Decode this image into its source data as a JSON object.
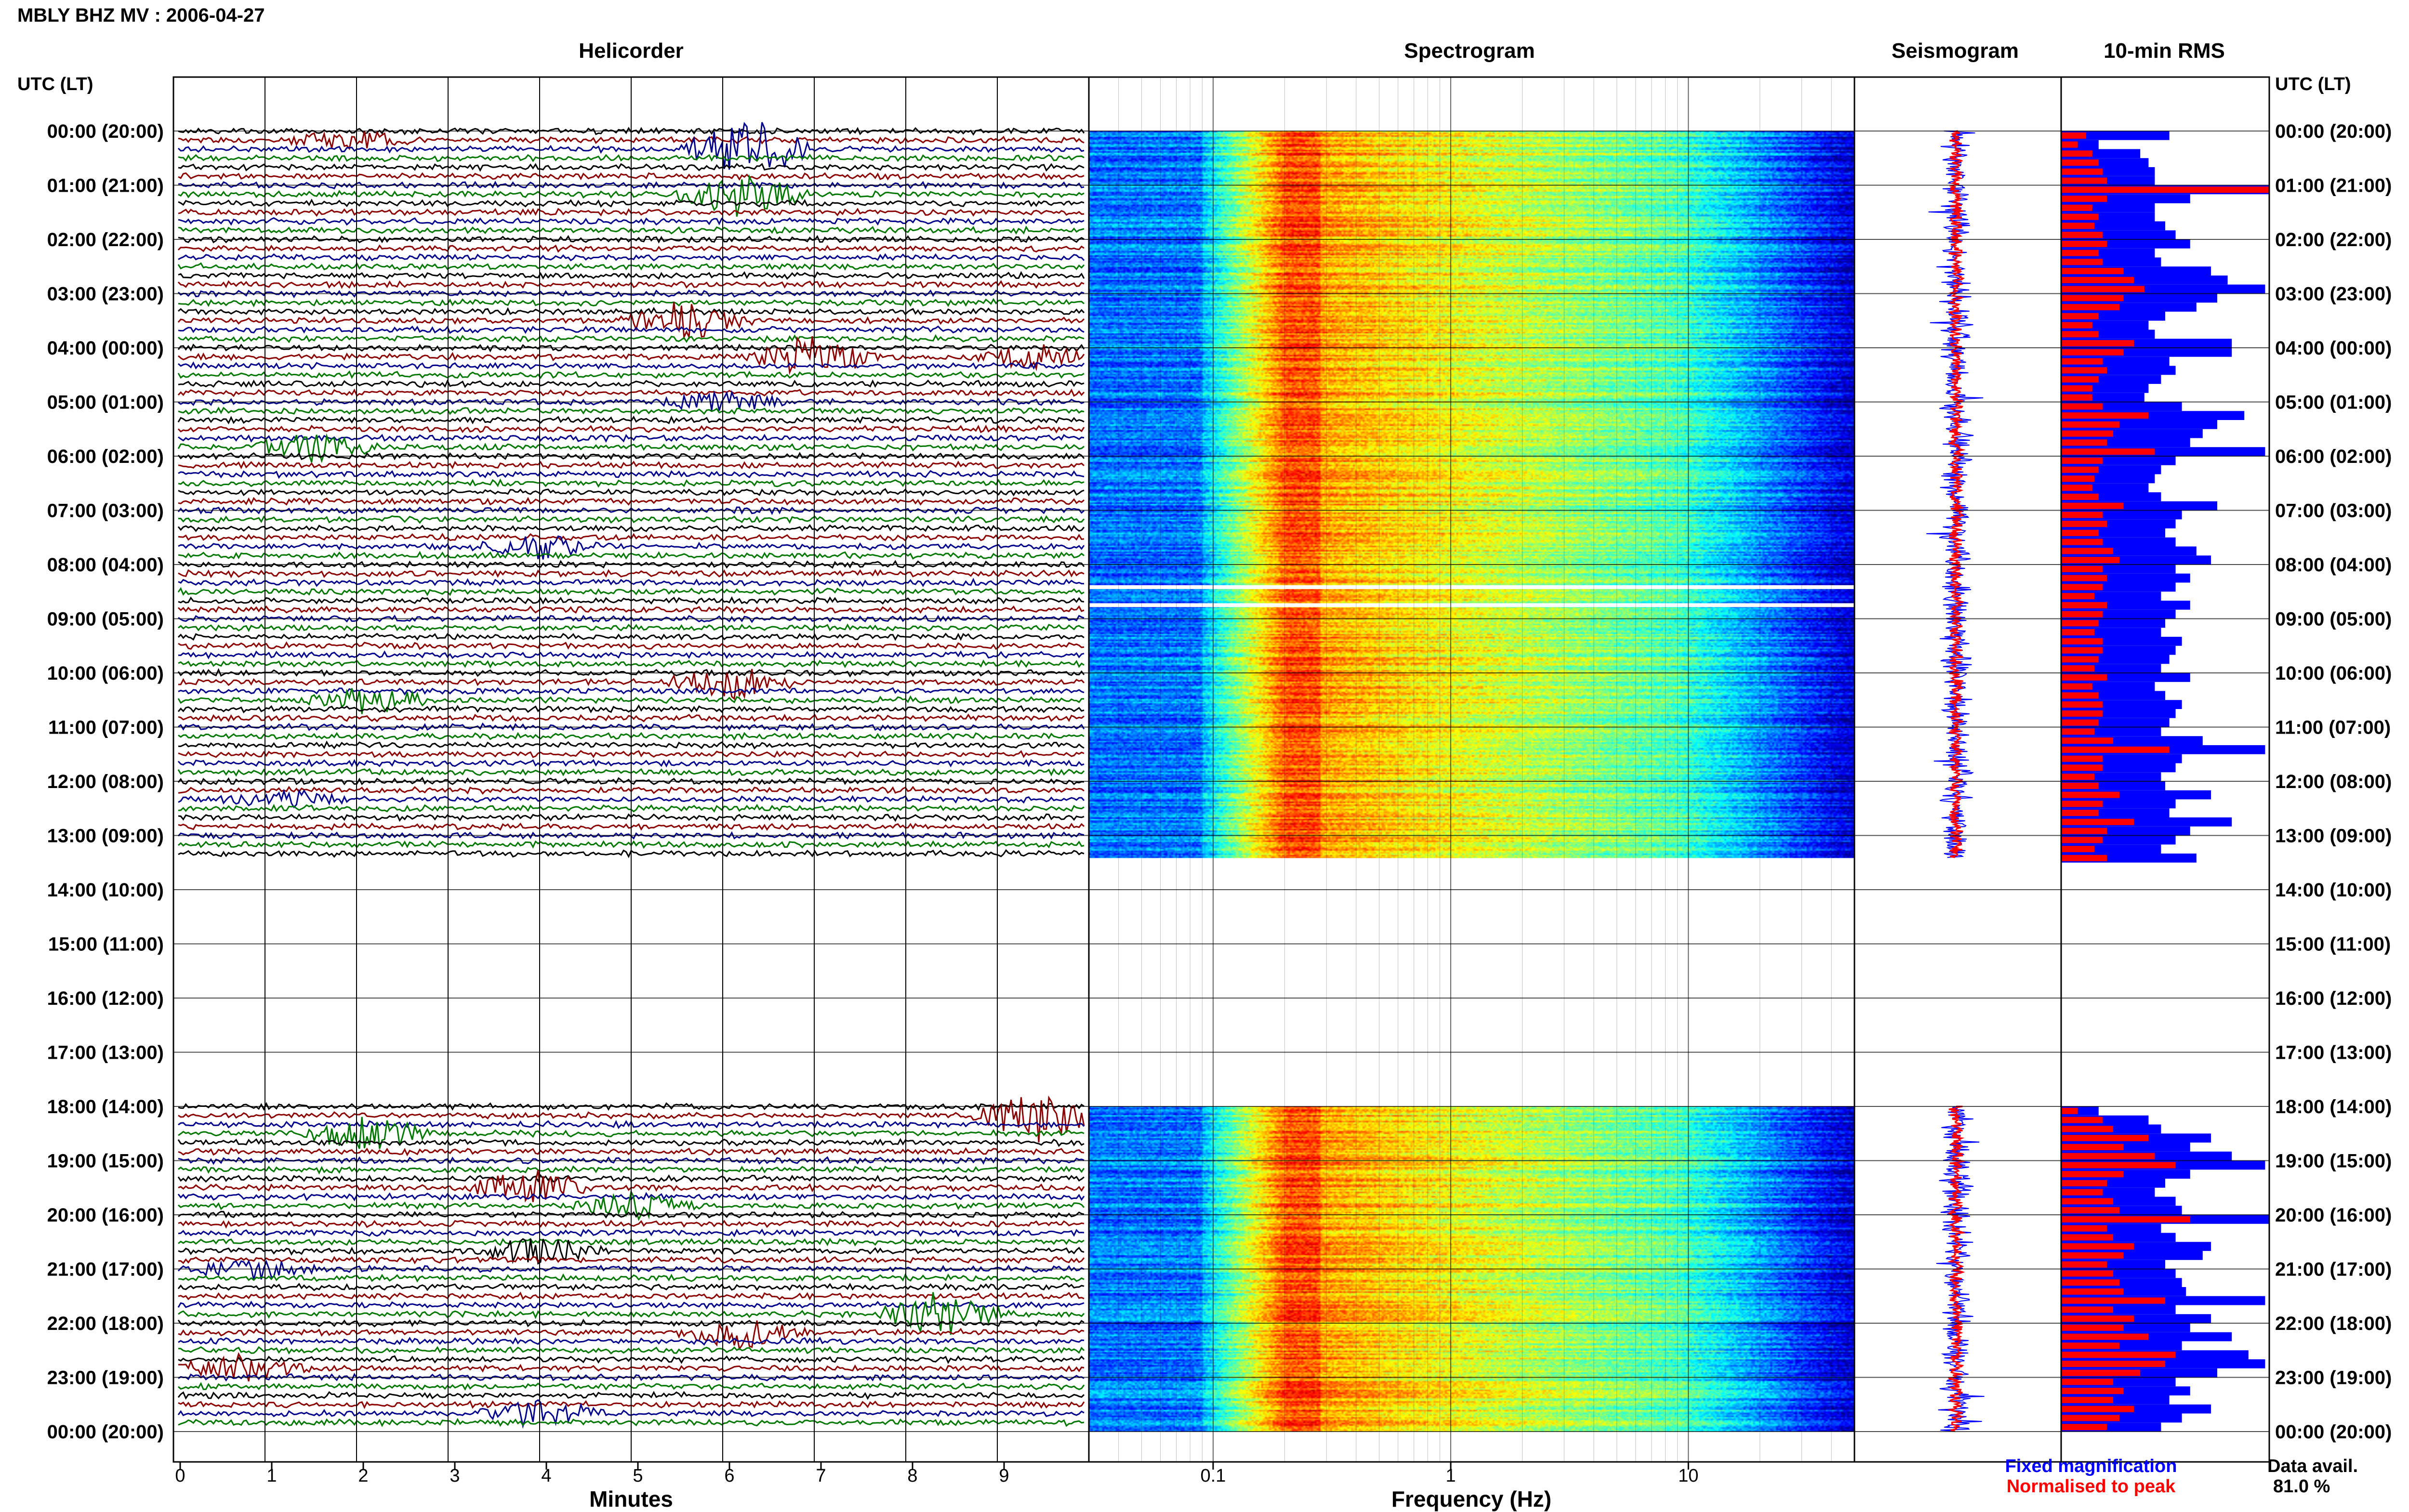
{
  "figure_title": "MBLY BHZ MV : 2006-04-27",
  "panels": {
    "helicorder": "Helicorder",
    "spectrogram": "Spectrogram",
    "seismogram": "Seismogram",
    "rms": "10-min RMS"
  },
  "time_axis_header": "UTC (LT)",
  "time_ticks": [
    "00:00 (20:00)",
    "01:00 (21:00)",
    "02:00 (22:00)",
    "03:00 (23:00)",
    "04:00 (00:00)",
    "05:00 (01:00)",
    "06:00 (02:00)",
    "07:00 (03:00)",
    "08:00 (04:00)",
    "09:00 (05:00)",
    "10:00 (06:00)",
    "11:00 (07:00)",
    "12:00 (08:00)",
    "13:00 (09:00)",
    "14:00 (10:00)",
    "15:00 (11:00)",
    "16:00 (12:00)",
    "17:00 (13:00)",
    "18:00 (14:00)",
    "19:00 (15:00)",
    "20:00 (16:00)",
    "21:00 (17:00)",
    "22:00 (18:00)",
    "23:00 (19:00)",
    "00:00 (20:00)"
  ],
  "minutes_axis": {
    "label": "Minutes",
    "ticks": [
      "0",
      "1",
      "2",
      "3",
      "4",
      "5",
      "6",
      "7",
      "8",
      "9"
    ]
  },
  "frequency_axis": {
    "label": "Frequency (Hz)",
    "ticks": [
      "0.1",
      "1",
      "10"
    ]
  },
  "legend": {
    "fixed": "Fixed magnification",
    "normalised": "Normalised to peak",
    "data_avail_label": "Data avail.",
    "data_avail_value": "81.0 %"
  },
  "colors": {
    "trace_cycle": [
      "#000000",
      "#8b0000",
      "#00008b",
      "#007800"
    ],
    "fixed": "#0000ff",
    "normalised": "#ff0000",
    "gap": "#ffffff"
  },
  "chart_data": {
    "type": "helicorder",
    "date": "2006-04-27",
    "station": "MBLY",
    "channel": "BHZ",
    "network": "MV",
    "x_minutes_range": [
      0,
      10
    ],
    "freq_range_hz": [
      0.03,
      50
    ],
    "freq_scale": "log",
    "data_gaps_utc": [
      [
        "13:25",
        "18:00"
      ]
    ],
    "spectrogram_gap_lines_utc": [
      "08:25",
      "08:45"
    ],
    "rms_10min": {
      "segment_1_start": "00:00",
      "fixed": [
        0.52,
        0.18,
        0.38,
        0.42,
        0.45,
        0.45,
        1.0,
        0.62,
        0.45,
        0.45,
        0.5,
        0.55,
        0.62,
        0.45,
        0.48,
        0.72,
        0.8,
        0.98,
        0.75,
        0.65,
        0.5,
        0.42,
        0.45,
        0.82,
        0.82,
        0.52,
        0.55,
        0.48,
        0.42,
        0.4,
        0.58,
        0.88,
        0.75,
        0.68,
        0.62,
        0.98,
        0.55,
        0.48,
        0.45,
        0.42,
        0.48,
        0.75,
        0.58,
        0.55,
        0.5,
        0.55,
        0.65,
        0.72,
        0.55,
        0.62,
        0.55,
        0.48,
        0.62,
        0.55,
        0.5,
        0.48,
        0.58,
        0.55,
        0.52,
        0.48,
        0.62,
        0.45,
        0.5,
        0.58,
        0.55,
        0.52,
        0.48,
        0.68,
        0.98,
        0.58,
        0.55,
        0.48,
        0.5,
        0.72,
        0.55,
        0.52,
        0.82,
        0.62,
        0.55,
        0.48,
        0.65
      ],
      "normalised": [
        0.12,
        0.08,
        0.15,
        0.18,
        0.2,
        0.22,
        1.0,
        0.22,
        0.15,
        0.18,
        0.16,
        0.2,
        0.22,
        0.18,
        0.2,
        0.3,
        0.35,
        0.4,
        0.3,
        0.28,
        0.18,
        0.15,
        0.18,
        0.35,
        0.3,
        0.2,
        0.22,
        0.18,
        0.15,
        0.15,
        0.2,
        0.42,
        0.28,
        0.25,
        0.22,
        0.45,
        0.2,
        0.18,
        0.16,
        0.15,
        0.18,
        0.3,
        0.2,
        0.22,
        0.18,
        0.2,
        0.25,
        0.28,
        0.2,
        0.22,
        0.2,
        0.16,
        0.22,
        0.2,
        0.18,
        0.16,
        0.2,
        0.2,
        0.18,
        0.16,
        0.22,
        0.15,
        0.18,
        0.2,
        0.2,
        0.18,
        0.16,
        0.25,
        0.52,
        0.2,
        0.2,
        0.16,
        0.18,
        0.28,
        0.2,
        0.18,
        0.35,
        0.22,
        0.2,
        0.16,
        0.22
      ],
      "segment_2_start": "18:00",
      "fixed_2": [
        0.18,
        0.42,
        0.48,
        0.72,
        0.62,
        0.82,
        0.98,
        0.62,
        0.5,
        0.45,
        0.55,
        0.58,
        1.0,
        0.48,
        0.55,
        0.72,
        0.68,
        0.5,
        0.55,
        0.58,
        0.6,
        0.98,
        0.55,
        0.72,
        0.62,
        0.82,
        0.58,
        0.9,
        0.98,
        0.75,
        0.55,
        0.62,
        0.52,
        0.72,
        0.58,
        0.48
      ],
      "normalised_2": [
        0.08,
        0.2,
        0.25,
        0.42,
        0.3,
        0.45,
        0.55,
        0.3,
        0.22,
        0.2,
        0.25,
        0.28,
        0.62,
        0.22,
        0.25,
        0.35,
        0.3,
        0.22,
        0.25,
        0.28,
        0.3,
        0.5,
        0.25,
        0.35,
        0.3,
        0.42,
        0.28,
        0.55,
        0.5,
        0.38,
        0.25,
        0.3,
        0.25,
        0.35,
        0.28,
        0.22
      ]
    }
  }
}
